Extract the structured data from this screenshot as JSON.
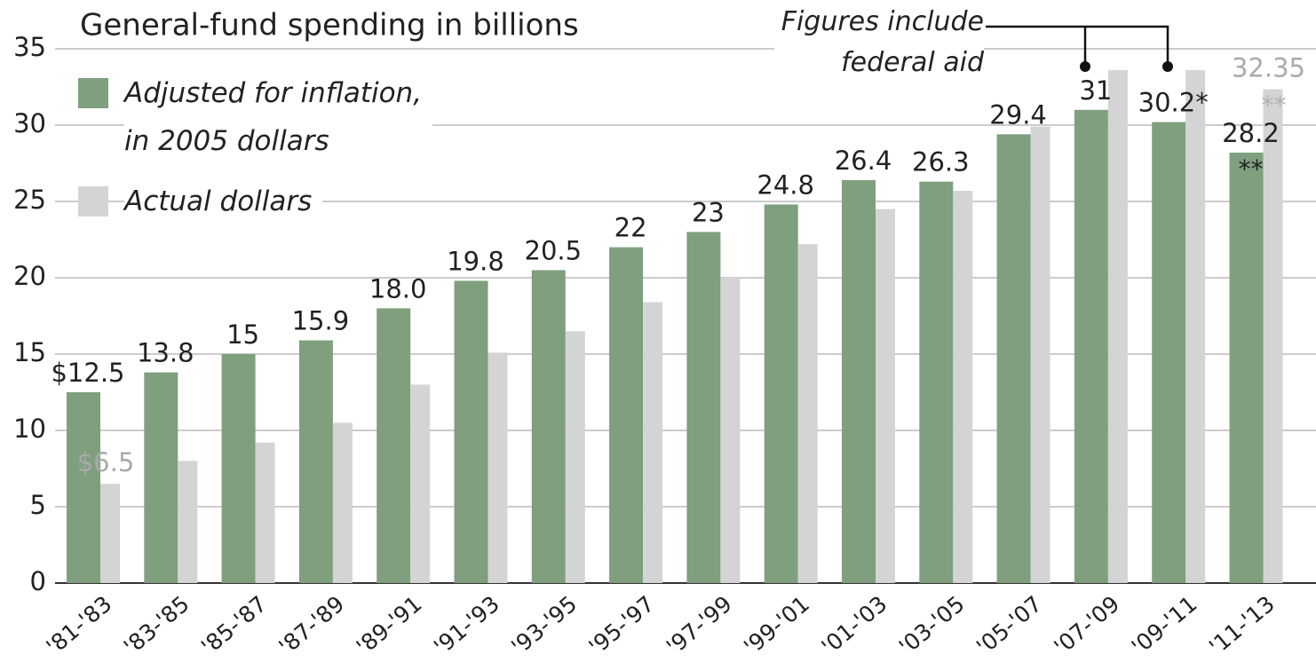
{
  "chart_data": {
    "type": "bar",
    "title": "General-fund spending in billions",
    "categories": [
      "'81-'83",
      "'83-'85",
      "'85-'87",
      "'87-'89",
      "'89-'91",
      "'91-'93",
      "'93-'95",
      "'95-'97",
      "'97-'99",
      "'99-'01",
      "'01-'03",
      "'03-'05",
      "'05-'07",
      "'07-'09",
      "'09-'11",
      "'11-'13"
    ],
    "series": [
      {
        "name": "Adjusted for inflation,\nin 2005 dollars",
        "color": "#7f9f7f",
        "values": [
          12.5,
          13.8,
          15,
          15.9,
          18.0,
          19.8,
          20.5,
          22,
          23,
          24.8,
          26.4,
          26.3,
          29.4,
          31,
          30.2,
          28.2
        ],
        "value_labels": [
          "$12.5",
          "13.8",
          "15",
          "15.9",
          "18.0",
          "19.8",
          "20.5",
          "22",
          "23",
          "24.8",
          "26.4",
          "26.3",
          "29.4",
          "31",
          "30.2*",
          "28.2"
        ]
      },
      {
        "name": "Actual dollars",
        "color": "#d4d4d4",
        "values": [
          6.5,
          8.0,
          9.2,
          10.5,
          13.0,
          15.1,
          16.5,
          18.4,
          20.0,
          22.2,
          24.5,
          25.7,
          29.9,
          33.6,
          33.6,
          32.35
        ],
        "value_labels": [
          "$6.5",
          null,
          null,
          null,
          null,
          null,
          null,
          null,
          null,
          null,
          null,
          null,
          null,
          null,
          null,
          "32.35"
        ]
      }
    ],
    "annotations": [
      {
        "text": "Figures include\nfederal aid"
      },
      {
        "text": "**",
        "color": "#b0b0b0"
      },
      {
        "text": "**",
        "color": "#222222"
      }
    ],
    "ylim": [
      0,
      35
    ],
    "yticks": [
      0,
      5,
      10,
      15,
      20,
      25,
      30,
      35
    ],
    "grid": true
  }
}
